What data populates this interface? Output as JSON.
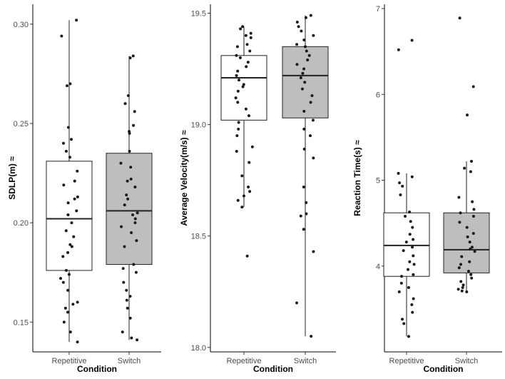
{
  "chart_data": [
    {
      "type": "box",
      "xlabel": "Condition",
      "ylabel": "SDLP(m)",
      "ylabel_symbol": "≈",
      "ylim": [
        0.135,
        0.31
      ],
      "yticks": [
        0.15,
        0.2,
        0.25,
        0.3
      ],
      "ytick_labels": [
        "0.15",
        "0.20",
        "0.25",
        "0.30"
      ],
      "categories": [
        "Repetitive",
        "Switch"
      ],
      "boxes": [
        {
          "category": "Repetitive",
          "fill": "#ffffff",
          "whisker_low": 0.14,
          "q1": 0.176,
          "median": 0.202,
          "q3": 0.231,
          "whisker_high": 0.302,
          "points": [
            0.302,
            0.294,
            0.27,
            0.269,
            0.248,
            0.242,
            0.24,
            0.236,
            0.233,
            0.226,
            0.221,
            0.219,
            0.213,
            0.212,
            0.21,
            0.206,
            0.204,
            0.2,
            0.196,
            0.193,
            0.189,
            0.188,
            0.185,
            0.183,
            0.176,
            0.174,
            0.172,
            0.17,
            0.166,
            0.16,
            0.159,
            0.157,
            0.155,
            0.15,
            0.145,
            0.14
          ]
        },
        {
          "category": "Switch",
          "fill": "#bebebe",
          "whisker_low": 0.141,
          "q1": 0.179,
          "median": 0.206,
          "q3": 0.235,
          "whisker_high": 0.284,
          "points": [
            0.284,
            0.283,
            0.264,
            0.26,
            0.256,
            0.249,
            0.246,
            0.245,
            0.236,
            0.23,
            0.228,
            0.222,
            0.221,
            0.218,
            0.214,
            0.212,
            0.209,
            0.205,
            0.204,
            0.202,
            0.2,
            0.198,
            0.195,
            0.191,
            0.188,
            0.179,
            0.177,
            0.175,
            0.17,
            0.166,
            0.163,
            0.161,
            0.157,
            0.152,
            0.145,
            0.142,
            0.141
          ]
        }
      ]
    },
    {
      "type": "box",
      "xlabel": "Condition",
      "ylabel": "Average Velocity(m/s)",
      "ylabel_symbol": "≈",
      "ylim": [
        17.98,
        19.54
      ],
      "yticks": [
        18.0,
        18.5,
        19.0,
        19.5
      ],
      "ytick_labels": [
        "18.0",
        "18.5",
        "19.0",
        "19.5"
      ],
      "categories": [
        "Repetitive",
        "Switch"
      ],
      "boxes": [
        {
          "category": "Repetitive",
          "fill": "#ffffff",
          "whisker_low": 18.63,
          "q1": 19.02,
          "median": 19.21,
          "q3": 19.31,
          "whisker_high": 19.44,
          "points": [
            19.44,
            19.43,
            19.41,
            19.4,
            19.39,
            19.36,
            19.35,
            19.33,
            19.31,
            19.3,
            19.28,
            19.26,
            19.24,
            19.22,
            19.2,
            19.18,
            19.17,
            19.15,
            19.12,
            19.1,
            19.07,
            19.04,
            19.01,
            18.98,
            18.95,
            18.9,
            18.88,
            18.83,
            18.77,
            18.72,
            18.7,
            18.68,
            18.66,
            18.63,
            18.41
          ]
        },
        {
          "category": "Switch",
          "fill": "#bebebe",
          "whisker_low": 18.05,
          "q1": 19.03,
          "median": 19.22,
          "q3": 19.35,
          "whisker_high": 19.49,
          "points": [
            19.49,
            19.48,
            19.46,
            19.44,
            19.42,
            19.4,
            19.38,
            19.36,
            19.35,
            19.33,
            19.31,
            19.29,
            19.27,
            19.25,
            19.23,
            19.21,
            19.19,
            19.16,
            19.13,
            19.1,
            19.06,
            19.02,
            18.98,
            18.95,
            18.89,
            18.85,
            18.72,
            18.65,
            18.6,
            18.59,
            18.53,
            18.43,
            18.2,
            18.05
          ]
        }
      ]
    },
    {
      "type": "box",
      "xlabel": "Condition",
      "ylabel": "Reaction Time(s)",
      "ylabel_symbol": "≈",
      "ylim": [
        3.0,
        7.05
      ],
      "yticks": [
        4,
        5,
        6,
        7
      ],
      "ytick_labels": [
        "4",
        "5",
        "6",
        "7"
      ],
      "categories": [
        "Repetitive",
        "Switch"
      ],
      "boxes": [
        {
          "category": "Repetitive",
          "fill": "#ffffff",
          "whisker_low": 3.18,
          "q1": 3.88,
          "median": 4.24,
          "q3": 4.62,
          "whisker_high": 5.08,
          "points": [
            6.63,
            6.52,
            5.08,
            5.04,
            4.97,
            4.93,
            4.83,
            4.63,
            4.58,
            4.52,
            4.45,
            4.37,
            4.31,
            4.28,
            4.22,
            4.18,
            4.12,
            4.05,
            4.02,
            3.96,
            3.9,
            3.88,
            3.8,
            3.75,
            3.7,
            3.62,
            3.55,
            3.46,
            3.38,
            3.33,
            3.18
          ]
        },
        {
          "category": "Switch",
          "fill": "#bebebe",
          "whisker_low": 3.7,
          "q1": 3.92,
          "median": 4.19,
          "q3": 4.62,
          "whisker_high": 5.22,
          "points": [
            6.89,
            6.09,
            5.76,
            5.22,
            5.14,
            5.1,
            4.8,
            4.75,
            4.66,
            4.62,
            4.58,
            4.51,
            4.45,
            4.38,
            4.34,
            4.28,
            4.22,
            4.2,
            4.17,
            4.11,
            4.05,
            4.02,
            3.98,
            3.94,
            3.9,
            3.86,
            3.82,
            3.78,
            3.75,
            3.73,
            3.71,
            3.7
          ]
        }
      ]
    }
  ]
}
